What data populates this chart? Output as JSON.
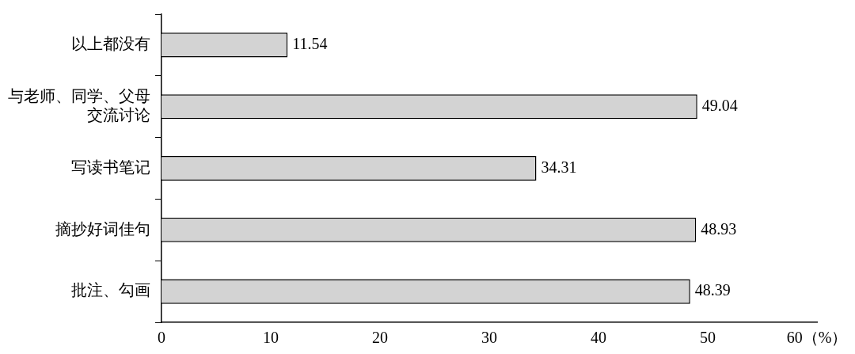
{
  "chart_data": {
    "type": "bar",
    "orientation": "horizontal",
    "categories": [
      "以上都没有",
      "与老师、同学、父母交流讨论",
      "写读书笔记",
      "摘抄好词佳句",
      "批注、勾画"
    ],
    "values": [
      11.54,
      49.04,
      34.31,
      48.93,
      48.39
    ],
    "color": "#d3d3d3",
    "xlim": [
      0,
      60
    ],
    "xticks": [
      0,
      10,
      20,
      30,
      40,
      50,
      {
        "value": 60,
        "label": "60（%）"
      }
    ],
    "data_labels": true
  }
}
